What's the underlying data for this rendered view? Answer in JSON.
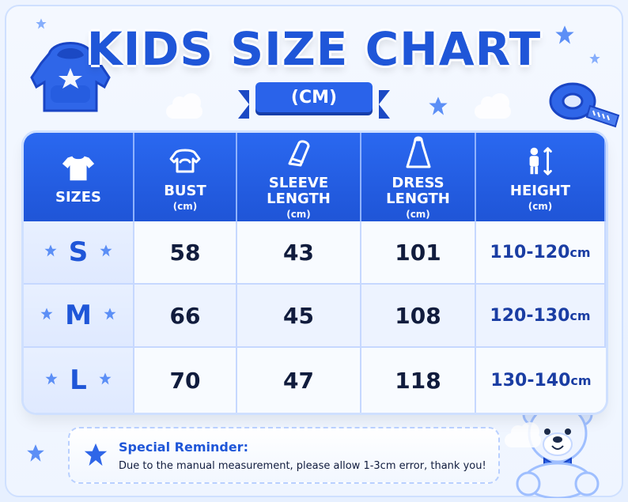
{
  "title": "KIDS SIZE CHART",
  "unit_badge": "(CM)",
  "colors": {
    "primary": "#1f56d8",
    "header": "#2a68f0",
    "text": "#111c3d",
    "accent": "#1a3da3"
  },
  "icons": {
    "hoodie": "hoodie-icon",
    "tape": "measuring-tape-icon",
    "bear": "teddy-bear-icon",
    "star": "star-icon",
    "cloud": "cloud-icon",
    "tshirt": "tshirt-icon",
    "bust": "bust-icon",
    "sleeve": "sleeve-icon",
    "dress": "dress-icon",
    "height": "height-icon"
  },
  "table": {
    "headers": [
      {
        "label": "SIZES",
        "unit": ""
      },
      {
        "label": "BUST",
        "unit": "(cm)"
      },
      {
        "label": "SLEEVE LENGTH",
        "unit": "(cm)"
      },
      {
        "label": "DRESS LENGTH",
        "unit": "(cm)"
      },
      {
        "label": "HEIGHT",
        "unit": "(cm)"
      }
    ],
    "rows": [
      {
        "size": "S",
        "bust": "58",
        "sleeve": "43",
        "dress": "101",
        "height": "110-120",
        "height_unit": "cm"
      },
      {
        "size": "M",
        "bust": "66",
        "sleeve": "45",
        "dress": "108",
        "height": "120-130",
        "height_unit": "cm"
      },
      {
        "size": "L",
        "bust": "70",
        "sleeve": "47",
        "dress": "118",
        "height": "130-140",
        "height_unit": "cm"
      }
    ]
  },
  "reminder": {
    "title": "Special Reminder:",
    "text": "Due to the manual measurement, please allow 1-3cm error, thank you!"
  }
}
